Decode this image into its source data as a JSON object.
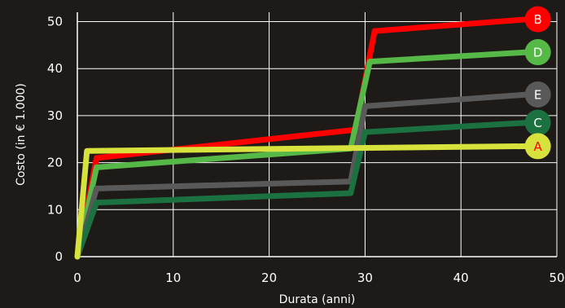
{
  "chart_data": {
    "type": "line",
    "xlabel": "Durata (anni)",
    "ylabel": "Costo (in € 1.000)",
    "xlim": [
      0,
      50
    ],
    "ylim": [
      0,
      52
    ],
    "x_ticks": [
      0,
      10,
      20,
      30,
      40,
      50
    ],
    "y_ticks": [
      0,
      10,
      20,
      30,
      40,
      50
    ],
    "grid": true,
    "series": [
      {
        "name": "B",
        "color": "#ff0000",
        "label_color": "#ffffff",
        "x": [
          0,
          2,
          29,
          31,
          47
        ],
        "y": [
          0,
          21,
          27,
          48,
          50.5
        ]
      },
      {
        "name": "D",
        "color": "#56b847",
        "label_color": "#ffffff",
        "x": [
          0,
          2,
          28.5,
          30.5,
          47
        ],
        "y": [
          0,
          19,
          23,
          41.5,
          43.5
        ]
      },
      {
        "name": "E",
        "color": "#595959",
        "label_color": "#ffffff",
        "x": [
          0,
          2,
          28.5,
          30,
          47
        ],
        "y": [
          0,
          14.5,
          16,
          32,
          34.5
        ]
      },
      {
        "name": "C",
        "color": "#1c7141",
        "label_color": "#ffffff",
        "x": [
          0,
          2,
          28.5,
          30,
          47
        ],
        "y": [
          0,
          11.5,
          13.5,
          26.5,
          28.5
        ]
      },
      {
        "name": "A",
        "color": "#d7e23c",
        "label_color": "#ff0000",
        "x": [
          0,
          1,
          47
        ],
        "y": [
          0,
          22.5,
          23.5
        ]
      }
    ]
  }
}
